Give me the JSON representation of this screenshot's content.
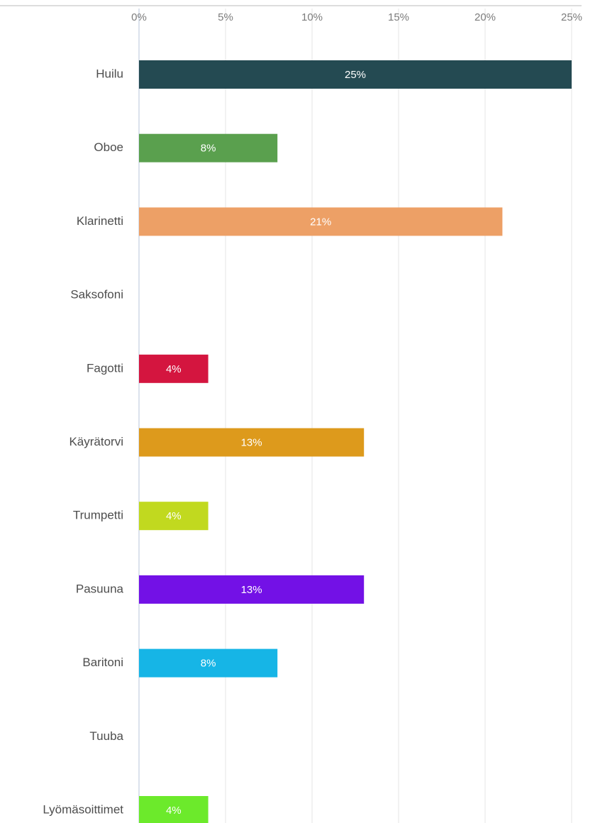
{
  "chart_data": {
    "type": "bar",
    "orientation": "horizontal",
    "title": "",
    "xlabel": "",
    "ylabel": "",
    "xlim": [
      0,
      25
    ],
    "x_ticks": [
      {
        "value": 0,
        "label": "0%"
      },
      {
        "value": 5,
        "label": "5%"
      },
      {
        "value": 10,
        "label": "10%"
      },
      {
        "value": 15,
        "label": "15%"
      },
      {
        "value": 20,
        "label": "20%"
      },
      {
        "value": 25,
        "label": "25%"
      }
    ],
    "grid": true,
    "legend": "none",
    "categories": [
      "Huilu",
      "Oboe",
      "Klarinetti",
      "Saksofoni",
      "Fagotti",
      "Käyrätorvi",
      "Trumpetti",
      "Pasuuna",
      "Baritoni",
      "Tuuba",
      "Lyömäsoittimet"
    ],
    "values": [
      25,
      8,
      21,
      0,
      4,
      13,
      4,
      13,
      8,
      0,
      4
    ],
    "data_labels": [
      "25%",
      "8%",
      "21%",
      "",
      "4%",
      "13%",
      "4%",
      "13%",
      "8%",
      "",
      "4%"
    ],
    "colors": [
      "#244a52",
      "#5aa04e",
      "#eda066",
      "#cccccc",
      "#d4153f",
      "#dd9a1c",
      "#c1d91f",
      "#7311e6",
      "#16b5e6",
      "#cccccc",
      "#6cea2b"
    ]
  }
}
